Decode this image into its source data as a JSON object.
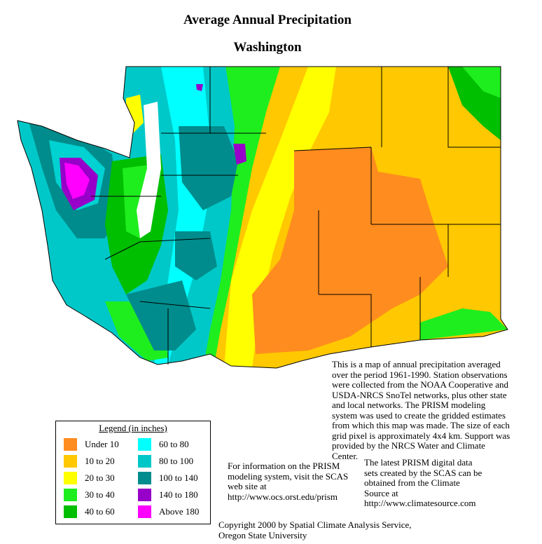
{
  "header": {
    "title": "Average Annual Precipitation",
    "subtitle": "Washington"
  },
  "description": "This is a map of annual precipitation averaged over the period 1961-1990. Station observations were collected from the NOAA Cooperative and USDA-NRCS SnoTel networks, plus other state and local networks.  The PRISM modeling system was used to create the gridded estimates from which this map was made.  The size of each grid pixel is approximately 4x4 km.  Support was provided by the NRCS Water and Climate Center.",
  "legend": {
    "title": "Legend (in inches)",
    "items": [
      {
        "label": "Under 10",
        "color": "#ff8c1e"
      },
      {
        "label": "10 to 20",
        "color": "#ffc800"
      },
      {
        "label": "20 to 30",
        "color": "#ffff00"
      },
      {
        "label": "30 to 40",
        "color": "#1eee1e"
      },
      {
        "label": "40 to 60",
        "color": "#00be00"
      },
      {
        "label": "60 to 80",
        "color": "#00ffff"
      },
      {
        "label": "80 to 100",
        "color": "#00c8c8"
      },
      {
        "label": "100 to 140",
        "color": "#008c8c"
      },
      {
        "label": "140 to 180",
        "color": "#9600c8"
      },
      {
        "label": "Above 180",
        "color": "#ff00ff"
      }
    ]
  },
  "info": "For information on the PRISM modeling system, visit the SCAS web site at  http://www.ocs.orst.edu/prism",
  "data_source": "The latest PRISM digital data sets created by the SCAS can be obtained from the Climate Source at http://www.climatesource.com",
  "copyright": "Copyright 2000 by Spatial Climate Analysis Service, Oregon State University"
}
